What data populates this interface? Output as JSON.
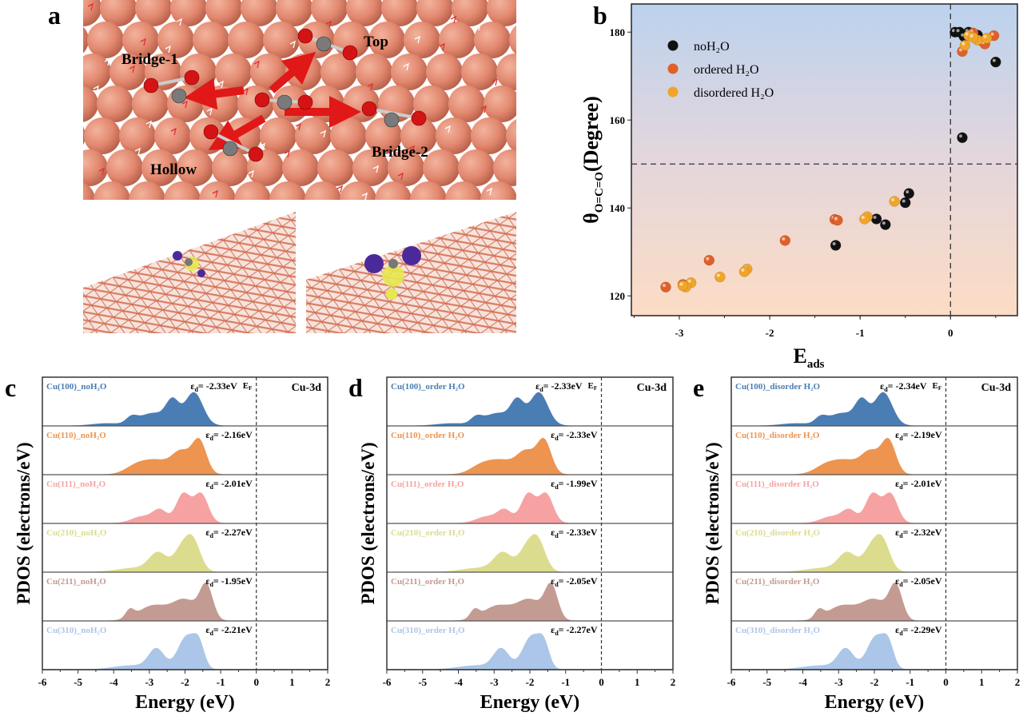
{
  "panel_letters": {
    "a": "a",
    "b": "b",
    "c": "c",
    "d": "d",
    "e": "e"
  },
  "panel_a": {
    "site_labels": {
      "bridge1": "Bridge-1",
      "top": "Top",
      "hollow": "Hollow",
      "bridge2": "Bridge-2"
    },
    "colors": {
      "cu": "#e2886f",
      "oxygen": "#d41414",
      "carbon": "#7a7a7a",
      "arrow": "#e01818"
    }
  },
  "chart_data": [
    {
      "panel": "b",
      "type": "scatter",
      "xlabel": "E",
      "xlabel_sub": "ads",
      "ylabel": "θ",
      "ylabel_sub": "O=C=O",
      "ylabel_rest": "(Degree)",
      "xlim": [
        -3.53,
        0.74
      ],
      "ylim": [
        115.5,
        186.4
      ],
      "xticks": [
        "-3",
        "-2",
        "-1",
        "0"
      ],
      "xtick_values": [
        -3,
        -2,
        -1,
        0
      ],
      "yticks": [
        "120",
        "140",
        "160",
        "180"
      ],
      "ytick_values": [
        120,
        140,
        160,
        180
      ],
      "reference_lines": {
        "x": 0,
        "y": 150
      },
      "background_gradient": [
        "#bcd2ee",
        "#fcdcc4"
      ],
      "legend_position": "top-left",
      "series": [
        {
          "name": "noH₂O",
          "color": "#111111",
          "points": [
            [
              0.05,
              180
            ],
            [
              0.1,
              180
            ],
            [
              0.15,
              179
            ],
            [
              0.2,
              180
            ],
            [
              0.3,
              179.3
            ],
            [
              0.35,
              178
            ],
            [
              0.5,
              173.2
            ],
            [
              0.13,
              156
            ],
            [
              -0.46,
              143.3
            ],
            [
              -0.5,
              141.2
            ],
            [
              -0.72,
              136.2
            ],
            [
              -0.82,
              137.5
            ],
            [
              -1.27,
              131.5
            ]
          ]
        },
        {
          "name": "ordered H₂O",
          "color": "#e0602a",
          "points": [
            [
              0.48,
              179.2
            ],
            [
              0.25,
              179.8
            ],
            [
              0.38,
              177.3
            ],
            [
              0.13,
              175.6
            ],
            [
              -1.28,
              137.4
            ],
            [
              -1.25,
              137.2
            ],
            [
              -1.83,
              132.6
            ],
            [
              -2.67,
              128.1
            ],
            [
              -3.15,
              122
            ],
            [
              -2.96,
              122.6
            ]
          ]
        },
        {
          "name": "disordered H₂O",
          "color": "#f0a528",
          "points": [
            [
              0.2,
              179.2
            ],
            [
              0.3,
              178.2
            ],
            [
              0.4,
              178.6
            ],
            [
              0.16,
              177
            ],
            [
              0.25,
              178.8
            ],
            [
              -0.62,
              141.5
            ],
            [
              -0.92,
              138
            ],
            [
              -0.95,
              137.5
            ],
            [
              -2.25,
              126.1
            ],
            [
              -2.28,
              125.5
            ],
            [
              -2.55,
              124.3
            ],
            [
              -2.87,
              123
            ],
            [
              -2.93,
              122
            ],
            [
              -2.96,
              122.3
            ]
          ]
        }
      ]
    },
    {
      "panel": "c",
      "type": "area",
      "xlabel": "Energy (eV)",
      "ylabel": "PDOS (electrons/eV)",
      "xlim": [
        -6,
        2
      ],
      "xticks": [
        "-6",
        "-5",
        "-4",
        "-3",
        "-2",
        "-1",
        "0",
        "1",
        "2"
      ],
      "fermi_label": "E",
      "fermi_sub": "F",
      "orbital_label": "Cu-3d",
      "series": [
        {
          "name": "Cu(100)_noH₂O",
          "eps_d": "-2.33eV",
          "facet": "100"
        },
        {
          "name": "Cu(110)_noH₂O",
          "eps_d": "-2.16eV",
          "facet": "110"
        },
        {
          "name": "Cu(111)_noH₂O",
          "eps_d": "-2.01eV",
          "facet": "111"
        },
        {
          "name": "Cu(210)_noH₂O",
          "eps_d": "-2.27eV",
          "facet": "210"
        },
        {
          "name": "Cu(211)_noH₂O",
          "eps_d": "-1.95eV",
          "facet": "211"
        },
        {
          "name": "Cu(310)_noH₂O",
          "eps_d": "-2.21eV",
          "facet": "310"
        }
      ]
    },
    {
      "panel": "d",
      "type": "area",
      "xlabel": "Energy (eV)",
      "ylabel": "PDOS (electrons/eV)",
      "xlim": [
        -6,
        2
      ],
      "xticks": [
        "-6",
        "-5",
        "-4",
        "-3",
        "-2",
        "-1",
        "0",
        "1",
        "2"
      ],
      "fermi_label": "E",
      "fermi_sub": "F",
      "orbital_label": "Cu-3d",
      "series": [
        {
          "name": "Cu(100)_order H₂O",
          "eps_d": "-2.33eV",
          "facet": "100"
        },
        {
          "name": "Cu(110)_order H₂O",
          "eps_d": "-2.33eV",
          "facet": "110"
        },
        {
          "name": "Cu(111)_order H₂O",
          "eps_d": "-1.99eV",
          "facet": "111"
        },
        {
          "name": "Cu(210)_order H₂O",
          "eps_d": "-2.33eV",
          "facet": "210"
        },
        {
          "name": "Cu(211)_order H₂O",
          "eps_d": "-2.05eV",
          "facet": "211"
        },
        {
          "name": "Cu(310)_order H₂O",
          "eps_d": "-2.27eV",
          "facet": "310"
        }
      ]
    },
    {
      "panel": "e",
      "type": "area",
      "xlabel": "Energy (eV)",
      "ylabel": "PDOS (electrons/eV)",
      "xlim": [
        -6,
        2
      ],
      "xticks": [
        "-6",
        "-5",
        "-4",
        "-3",
        "-2",
        "-1",
        "0",
        "1",
        "2"
      ],
      "fermi_label": "E",
      "fermi_sub": "F",
      "orbital_label": "Cu-3d",
      "series": [
        {
          "name": "Cu(100)_disorder H₂O",
          "eps_d": "-2.34eV",
          "facet": "100"
        },
        {
          "name": "Cu(110)_disorder H₂O",
          "eps_d": "-2.19eV",
          "facet": "110"
        },
        {
          "name": "Cu(111)_disorder H₂O",
          "eps_d": "-2.01eV",
          "facet": "111"
        },
        {
          "name": "Cu(210)_disorder H₂O",
          "eps_d": "-2.32eV",
          "facet": "210"
        },
        {
          "name": "Cu(211)_disorder H₂O",
          "eps_d": "-2.05eV",
          "facet": "211"
        },
        {
          "name": "Cu(310)_disorder H₂O",
          "eps_d": "-2.29eV",
          "facet": "310"
        }
      ]
    }
  ],
  "pdos_facets": {
    "100": {
      "color": "#4a7db4",
      "peaks_eV_height_width": [
        [
          -1.75,
          1,
          0.25
        ],
        [
          -2.35,
          0.65,
          0.18
        ],
        [
          -2.9,
          0.38,
          0.4
        ],
        [
          -3.5,
          0.18,
          0.15
        ],
        [
          -4.2,
          0.07,
          0.4
        ]
      ]
    },
    "110": {
      "color": "#ec9450",
      "peaks_eV_height_width": [
        [
          -1.6,
          1,
          0.2
        ],
        [
          -2.1,
          0.62,
          0.25
        ],
        [
          -2.8,
          0.42,
          0.4
        ],
        [
          -3.4,
          0.2,
          0.3
        ]
      ]
    },
    "111": {
      "color": "#f6a2a2",
      "peaks_eV_height_width": [
        [
          -1.55,
          0.88,
          0.2
        ],
        [
          -2.05,
          0.88,
          0.2
        ],
        [
          -2.7,
          0.38,
          0.2
        ],
        [
          -3.2,
          0.2,
          0.3
        ]
      ]
    },
    "210": {
      "color": "#dcdc8e",
      "peaks_eV_height_width": [
        [
          -1.8,
          1,
          0.22
        ],
        [
          -2.15,
          0.5,
          0.2
        ],
        [
          -2.75,
          0.55,
          0.25
        ],
        [
          -3.4,
          0.12,
          0.5
        ]
      ]
    },
    "211": {
      "color": "#c39b92",
      "peaks_eV_height_width": [
        [
          -1.4,
          1,
          0.18
        ],
        [
          -2.0,
          0.62,
          0.35
        ],
        [
          -2.9,
          0.45,
          0.4
        ],
        [
          -3.55,
          0.25,
          0.12
        ]
      ]
    },
    "310": {
      "color": "#abc6e8",
      "peaks_eV_height_width": [
        [
          -1.95,
          1,
          0.25
        ],
        [
          -1.6,
          0.6,
          0.15
        ],
        [
          -2.8,
          0.6,
          0.22
        ],
        [
          -3.5,
          0.12,
          0.5
        ]
      ]
    }
  }
}
